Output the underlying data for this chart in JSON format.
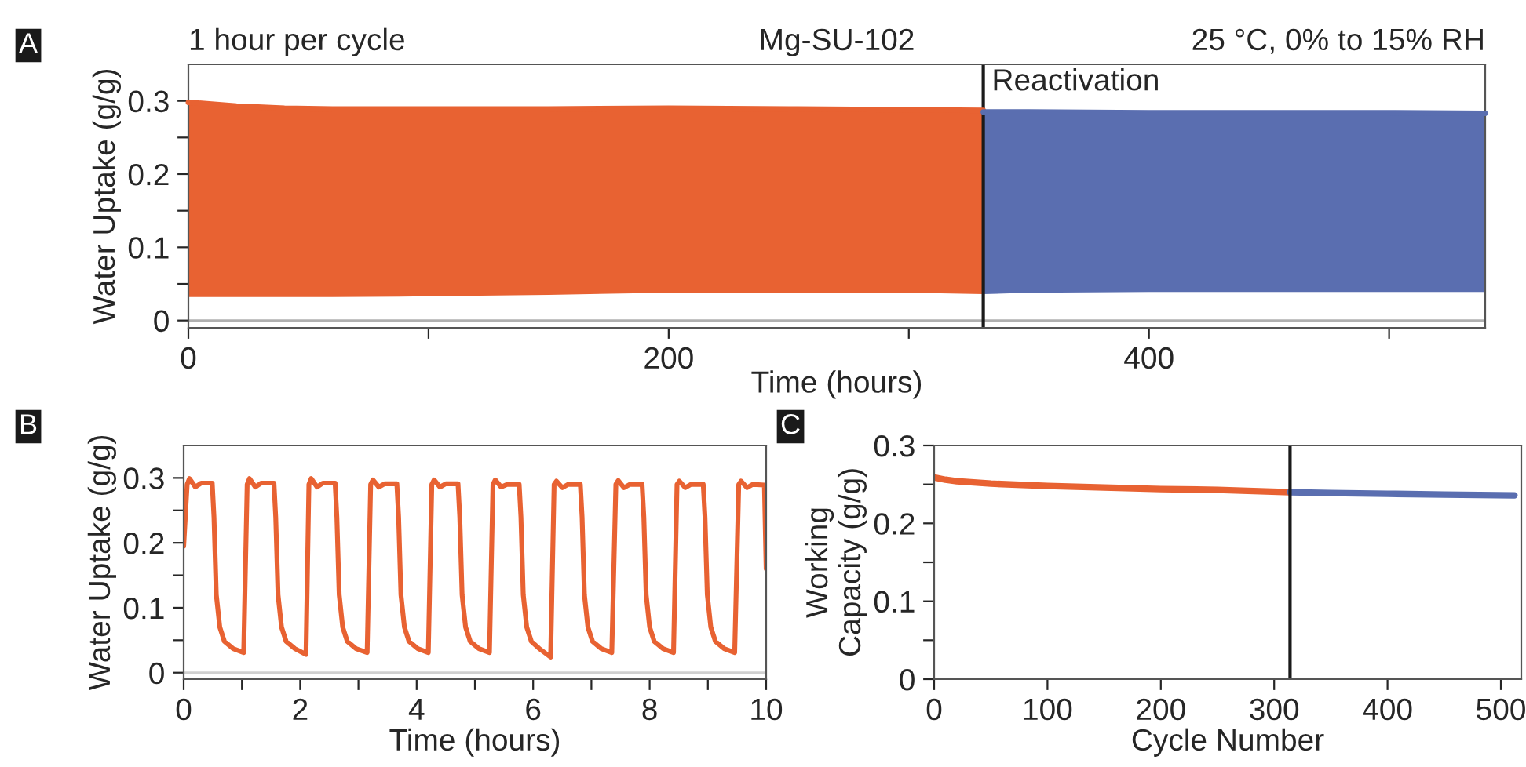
{
  "chart_data": [
    {
      "type": "line",
      "title": "Mg-SU-102",
      "xlabel": "Time (hours)",
      "ylabel": "Water Uptake (g/g)",
      "annotations": [
        "A",
        "1 hour per cycle",
        "25 °C, 0% to 15% RH"
      ],
      "xlim": [
        0,
        540
      ],
      "xticks": [
        0,
        {
          "value": 100,
          "label": null
        },
        200,
        {
          "value": 300,
          "label": null
        },
        400,
        {
          "value": 500,
          "label": null
        }
      ],
      "ylim": [
        -0.01,
        0.35
      ],
      "yticks": [
        0,
        {
          "value": 0.05,
          "label": null
        },
        0.1,
        {
          "value": 0.15,
          "label": null
        },
        0.2,
        {
          "value": 0.25,
          "label": null
        },
        0.3
      ],
      "ref_lines": [
        {
          "axis": "y",
          "value": 0,
          "color": "#b0b0b0"
        },
        {
          "axis": "x",
          "value": 331,
          "label": "Reactivation",
          "color": "#1a1a1a"
        }
      ],
      "series": [
        {
          "color": "#e86232",
          "x": [
            0,
            20,
            40,
            60,
            100,
            150,
            200,
            250,
            300,
            331
          ],
          "values": [
            0.298,
            0.293,
            0.29,
            0.289,
            0.289,
            0.289,
            0.29,
            0.289,
            0.288,
            0.287
          ],
          "upper": [
            0.298,
            0.293,
            0.29,
            0.289,
            0.289,
            0.289,
            0.29,
            0.289,
            0.288,
            0.287
          ],
          "lower": [
            0.032,
            0.032,
            0.032,
            0.032,
            0.033,
            0.035,
            0.038,
            0.038,
            0.038,
            0.036
          ]
        },
        {
          "color": "#5a6eb0",
          "x": [
            331,
            350,
            400,
            450,
            500,
            540
          ],
          "values": [
            0.285,
            0.285,
            0.284,
            0.284,
            0.284,
            0.283
          ],
          "upper": [
            0.285,
            0.285,
            0.284,
            0.284,
            0.284,
            0.283
          ],
          "lower": [
            0.036,
            0.038,
            0.039,
            0.039,
            0.039,
            0.039
          ]
        }
      ]
    },
    {
      "type": "line",
      "xlabel": "Time (hours)",
      "ylabel": "Water Uptake (g/g)",
      "annotations": [
        "B"
      ],
      "xlim": [
        0,
        10
      ],
      "xticks": [
        0,
        {
          "value": 1,
          "label": null
        },
        2,
        {
          "value": 3,
          "label": null
        },
        4,
        {
          "value": 5,
          "label": null
        },
        6,
        {
          "value": 7,
          "label": null
        },
        8,
        {
          "value": 9,
          "label": null
        },
        10
      ],
      "ylim": [
        -0.01,
        0.35
      ],
      "yticks": [
        0,
        {
          "value": 0.05,
          "label": null
        },
        0.1,
        {
          "value": 0.15,
          "label": null
        },
        0.2,
        {
          "value": 0.25,
          "label": null
        },
        0.3
      ],
      "ref_lines": [
        {
          "axis": "y",
          "value": 0,
          "color": "#d0d0d0"
        }
      ],
      "series": [
        {
          "color": "#e86232",
          "x": [
            0,
            0.06,
            0.1,
            0.2,
            0.3,
            0.49,
            0.52,
            0.56,
            0.62,
            0.7,
            0.85,
            1.03,
            1.09,
            1.13,
            1.23,
            1.33,
            1.55,
            1.58,
            1.62,
            1.68,
            1.76,
            1.91,
            2.1,
            2.15,
            2.19,
            2.29,
            2.39,
            2.6,
            2.63,
            2.67,
            2.73,
            2.81,
            2.96,
            3.15,
            3.21,
            3.25,
            3.35,
            3.45,
            3.66,
            3.69,
            3.73,
            3.79,
            3.87,
            4.02,
            4.2,
            4.26,
            4.3,
            4.4,
            4.5,
            4.71,
            4.74,
            4.78,
            4.84,
            4.92,
            5.07,
            5.25,
            5.31,
            5.35,
            5.45,
            5.55,
            5.76,
            5.79,
            5.83,
            5.89,
            5.97,
            6.12,
            6.3,
            6.36,
            6.4,
            6.5,
            6.6,
            6.81,
            6.84,
            6.88,
            6.94,
            7.02,
            7.17,
            7.35,
            7.42,
            7.46,
            7.56,
            7.66,
            7.87,
            7.9,
            7.94,
            8.0,
            8.08,
            8.23,
            8.41,
            8.47,
            8.51,
            8.61,
            8.71,
            8.92,
            8.95,
            8.99,
            9.05,
            9.13,
            9.28,
            9.46,
            9.53,
            9.57,
            9.67,
            9.77,
            9.97,
            10
          ],
          "values": [
            0.195,
            0.29,
            0.299,
            0.286,
            0.292,
            0.292,
            0.24,
            0.12,
            0.07,
            0.048,
            0.037,
            0.031,
            0.29,
            0.299,
            0.286,
            0.292,
            0.292,
            0.24,
            0.12,
            0.07,
            0.048,
            0.037,
            0.028,
            0.29,
            0.299,
            0.286,
            0.292,
            0.292,
            0.24,
            0.12,
            0.07,
            0.048,
            0.037,
            0.031,
            0.29,
            0.297,
            0.286,
            0.291,
            0.291,
            0.24,
            0.12,
            0.07,
            0.048,
            0.037,
            0.031,
            0.29,
            0.297,
            0.286,
            0.291,
            0.291,
            0.24,
            0.12,
            0.07,
            0.048,
            0.037,
            0.031,
            0.29,
            0.297,
            0.286,
            0.29,
            0.29,
            0.24,
            0.12,
            0.07,
            0.048,
            0.036,
            0.024,
            0.29,
            0.295,
            0.285,
            0.29,
            0.29,
            0.24,
            0.12,
            0.07,
            0.048,
            0.037,
            0.031,
            0.29,
            0.296,
            0.285,
            0.29,
            0.29,
            0.24,
            0.12,
            0.07,
            0.048,
            0.037,
            0.031,
            0.29,
            0.295,
            0.285,
            0.29,
            0.29,
            0.24,
            0.12,
            0.07,
            0.048,
            0.037,
            0.031,
            0.29,
            0.295,
            0.285,
            0.29,
            0.289,
            0.16
          ]
        }
      ]
    },
    {
      "type": "line",
      "xlabel": "Cycle Number",
      "ylabel": "Working\nCapacity (g/g)",
      "annotations": [
        "C"
      ],
      "xlim": [
        0,
        518
      ],
      "xticks": [
        0,
        100,
        200,
        300,
        400,
        500
      ],
      "ylim": [
        0,
        0.3
      ],
      "yticks": [
        0,
        {
          "value": 0.05,
          "label": null
        },
        0.1,
        {
          "value": 0.15,
          "label": null
        },
        0.2,
        {
          "value": 0.25,
          "label": null
        },
        0.3
      ],
      "ref_lines": [
        {
          "axis": "x",
          "value": 314,
          "color": "#1a1a1a"
        }
      ],
      "series": [
        {
          "color": "#e86232",
          "x": [
            0,
            10,
            20,
            50,
            100,
            150,
            200,
            250,
            314
          ],
          "values": [
            0.259,
            0.256,
            0.254,
            0.251,
            0.248,
            0.246,
            0.244,
            0.243,
            0.24
          ]
        },
        {
          "color": "#5a6eb0",
          "x": [
            314,
            350,
            400,
            450,
            512
          ],
          "values": [
            0.24,
            0.239,
            0.238,
            0.237,
            0.236
          ]
        }
      ]
    }
  ]
}
